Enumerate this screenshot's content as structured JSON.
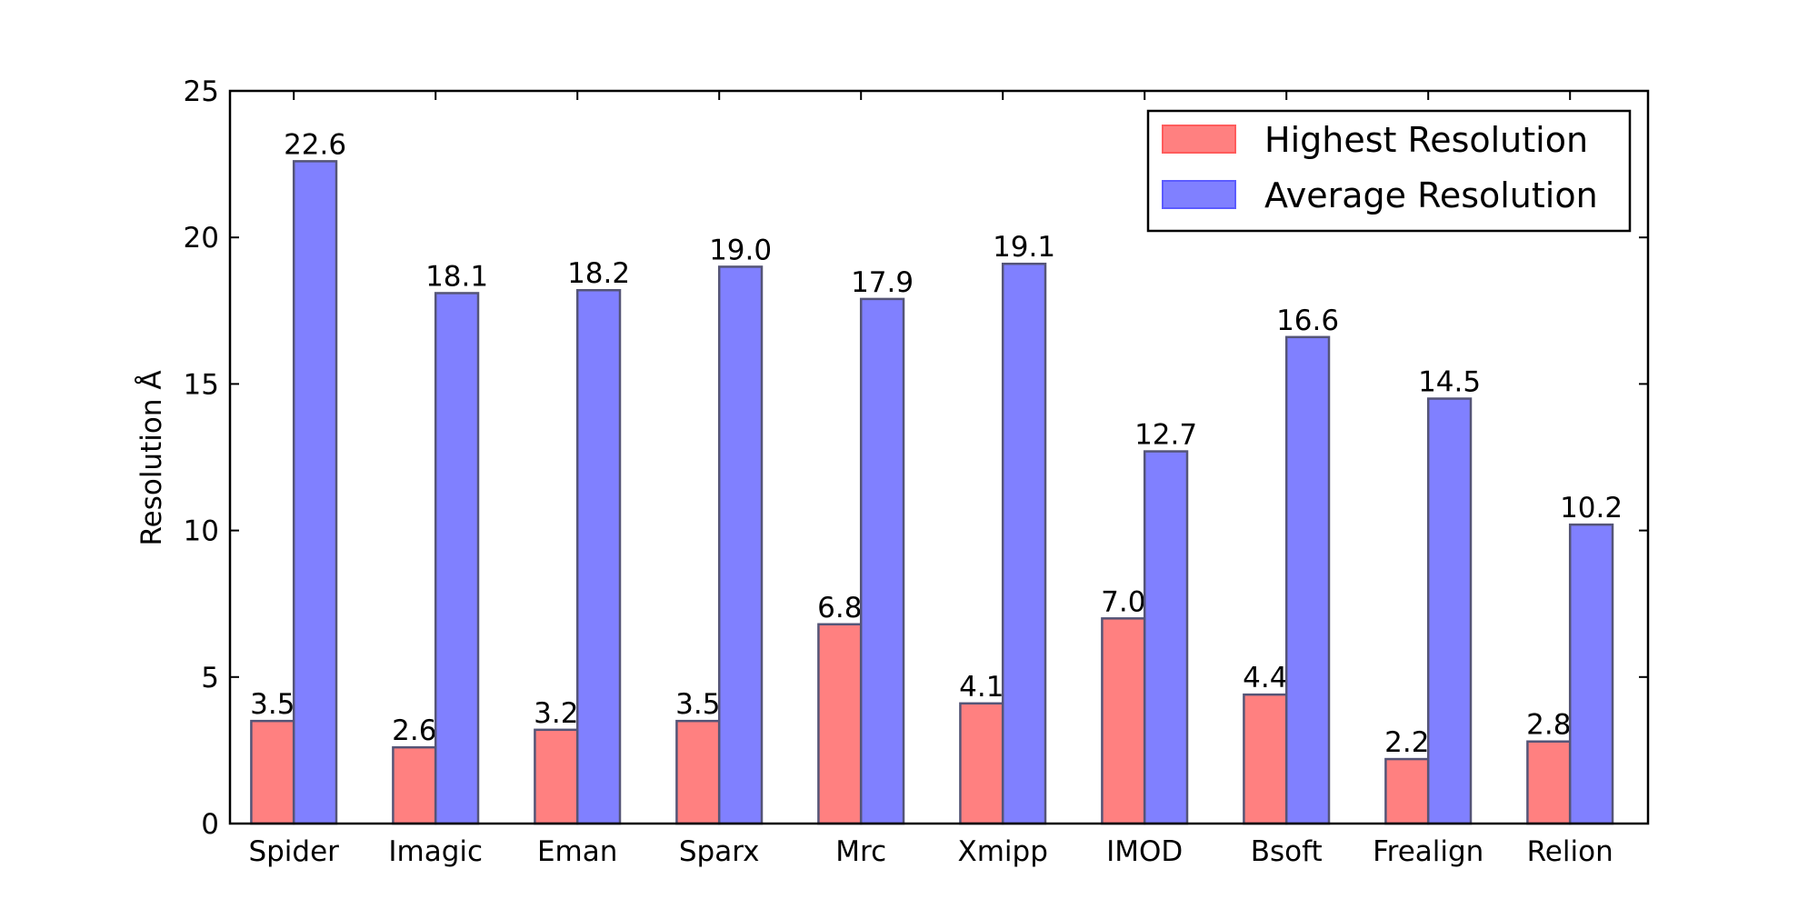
{
  "chart_data": {
    "type": "bar",
    "title": "",
    "xlabel": "",
    "ylabel": "Resolution Å",
    "ylim": [
      0,
      25
    ],
    "yticks": [
      0,
      5,
      10,
      15,
      20,
      25
    ],
    "categories": [
      "Spider",
      "Imagic",
      "Eman",
      "Sparx",
      "Mrc",
      "Xmipp",
      "IMOD",
      "Bsoft",
      "Frealign",
      "Relion"
    ],
    "series": [
      {
        "name": "Highest Resolution",
        "color": "#ff8080",
        "values": [
          3.5,
          2.6,
          3.2,
          3.5,
          6.8,
          4.1,
          7.0,
          4.4,
          2.2,
          2.8
        ],
        "labels": [
          "3.5",
          "2.6",
          "3.2",
          "3.5",
          "6.8",
          "4.1",
          "7.0",
          "4.4",
          "2.2",
          "2.8"
        ]
      },
      {
        "name": "Average Resolution",
        "color": "#8080ff",
        "values": [
          22.6,
          18.1,
          18.2,
          19.0,
          17.9,
          19.1,
          12.7,
          16.6,
          14.5,
          10.2
        ],
        "labels": [
          "22.6",
          "18.1",
          "18.2",
          "19.0",
          "17.9",
          "19.1",
          "12.7",
          "16.6",
          "14.5",
          "10.2"
        ]
      }
    ],
    "legend": {
      "position": "top-right"
    },
    "grid": false
  }
}
